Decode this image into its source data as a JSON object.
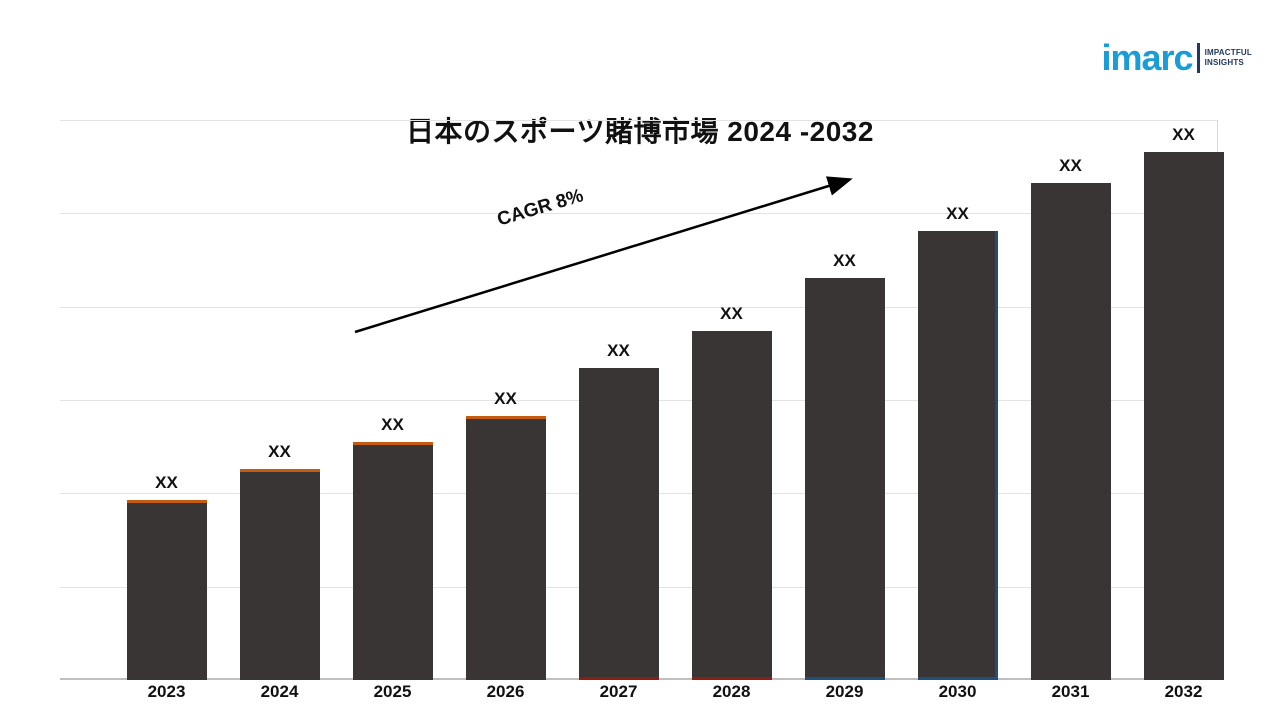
{
  "logo": {
    "brand": "imarc",
    "tagline_line1": "IMPACTFUL",
    "tagline_line2": "INSIGHTS",
    "brand_color": "#1a9cd8",
    "tagline_color": "#1f3864"
  },
  "chart_data": {
    "type": "bar",
    "title": "日本のスポーツ賭博市場 2024 -2032",
    "annotation": "CAGR 8%",
    "categories": [
      "2023",
      "2024",
      "2025",
      "2026",
      "2027",
      "2028",
      "2029",
      "2030",
      "2031",
      "2032"
    ],
    "values": [
      34,
      40,
      45,
      50,
      59,
      66,
      76,
      85,
      94,
      100
    ],
    "value_labels": [
      "XX",
      "XX",
      "XX",
      "XX",
      "XX",
      "XX",
      "XX",
      "XX",
      "XX",
      "XX"
    ],
    "bar_color": "#3a3535",
    "bar_accents": [
      {
        "sides": [
          "top"
        ],
        "color": "#c55a11"
      },
      {
        "sides": [
          "top"
        ],
        "color": "#c55a11"
      },
      {
        "sides": [
          "top"
        ],
        "color": "#c55a11"
      },
      {
        "sides": [
          "top"
        ],
        "color": "#c55a11"
      },
      {
        "sides": [
          "bottom"
        ],
        "color": "#8b1d13"
      },
      {
        "sides": [
          "bottom"
        ],
        "color": "#8b1d13"
      },
      {
        "sides": [
          "bottom"
        ],
        "color": "#1f4e79"
      },
      {
        "sides": [
          "right",
          "bottom"
        ],
        "color": "#1f4e79"
      },
      {
        "sides": [],
        "color": ""
      },
      {
        "sides": [],
        "color": ""
      }
    ],
    "xlabel": "",
    "ylabel": "",
    "ylim": [
      0,
      106
    ],
    "grid": true,
    "legend": "none"
  }
}
